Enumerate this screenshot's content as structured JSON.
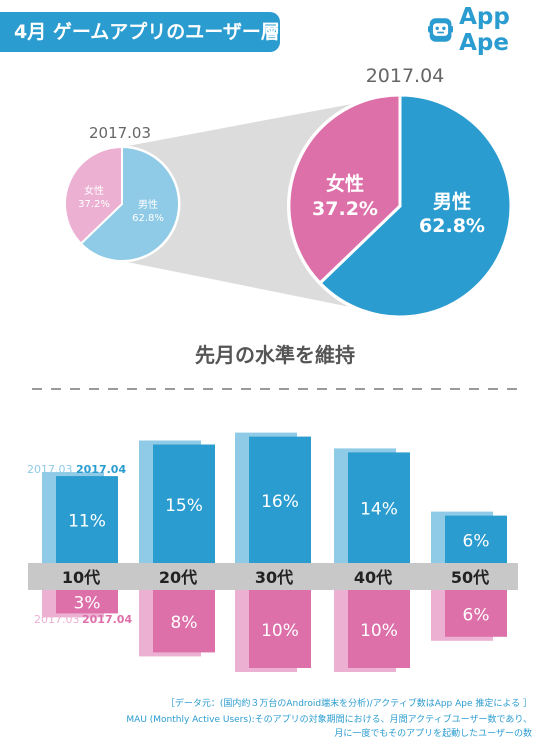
{
  "header": {
    "title": "4月 ゲームアプリのユーザー層",
    "logo_text": "App Ape"
  },
  "colors": {
    "male": "#2b9ccf",
    "female": "#dd6fa9",
    "male_prev": "#8fcae6",
    "female_prev": "#ecb1d2",
    "band": "#c8c8c8",
    "title_bg": "#2b9ccf"
  },
  "chart_data": [
    {
      "type": "pie",
      "title": "2017.03",
      "slices": [
        {
          "label": "男性",
          "value": 62.8,
          "text": "62.8%"
        },
        {
          "label": "女性",
          "value": 37.2,
          "text": "37.2%"
        }
      ]
    },
    {
      "type": "pie",
      "title": "2017.04",
      "slices": [
        {
          "label": "男性",
          "value": 62.8,
          "text": "62.8%"
        },
        {
          "label": "女性",
          "value": 37.2,
          "text": "37.2%"
        }
      ]
    },
    {
      "type": "bar",
      "title": "先月の水準を維持",
      "categories": [
        "10代",
        "20代",
        "30代",
        "40代",
        "50代"
      ],
      "legend_prev": "2017.03",
      "legend_curr": "2017.04",
      "male_2017_04": [
        11,
        15,
        16,
        14,
        6
      ],
      "male_2017_03": [
        11,
        15,
        16,
        14,
        6
      ],
      "female_2017_04": [
        3,
        8,
        10,
        10,
        6
      ],
      "female_2017_03": [
        3,
        8,
        10,
        10,
        6
      ],
      "labels_male": [
        "11%",
        "15%",
        "16%",
        "14%",
        "6%"
      ],
      "labels_female": [
        "3%",
        "8%",
        "10%",
        "10%",
        "6%"
      ]
    }
  ],
  "footer": {
    "line1": "［データ元：(国内約３万台のAndroid端末を分析)/アクティブ数はApp Ape 推定による ］",
    "line2": "MAU (Monthly Active Users):そのアプリの対象期間における、月間アクティブユーザー数であり、",
    "line3": "月に一度でもそのアプリを起動したユーザーの数"
  }
}
